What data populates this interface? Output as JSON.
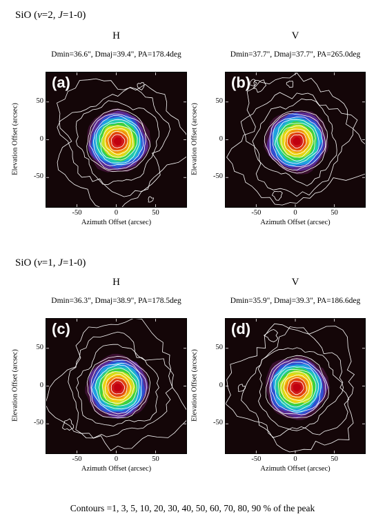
{
  "figure": {
    "contour_note": "Contours =1, 3, 5, 10, 20, 30, 40, 50, 60, 70, 80, 90 % of the peak",
    "colors": {
      "background": "#140608",
      "contour_line": "#ffffff",
      "ramp": [
        "#3a1030",
        "#5a2a90",
        "#2f4fd0",
        "#1f9fe0",
        "#21c8b0",
        "#3cd040",
        "#c8e020",
        "#f0d010",
        "#f09010",
        "#e04010",
        "#d01818",
        "#c00010"
      ]
    }
  },
  "groups": [
    {
      "title_pre": "SiO (",
      "title_v": "v",
      "title_mid1": "=2, ",
      "title_j": "J",
      "title_post": "=1-0)"
    },
    {
      "title_pre": "SiO (",
      "title_v": "v",
      "title_mid1": "=1, ",
      "title_j": "J",
      "title_post": "=1-0)"
    }
  ],
  "chart_data": [
    {
      "type": "heatmap",
      "label": "(a)",
      "polarization": "H",
      "beam": "Dmin=36.6\", Dmaj=39.4\", PA=178.4deg",
      "xlabel": "Azimuth Offset (arcsec)",
      "ylabel": "Elevation Offset (arcsec)",
      "xlim": [
        -90,
        90
      ],
      "ylim": [
        -90,
        90
      ],
      "xticks": [
        -50,
        0,
        50
      ],
      "yticks": [
        50,
        0,
        -50
      ],
      "contour_levels_percent": [
        1,
        3,
        5,
        10,
        20,
        30,
        40,
        50,
        60,
        70,
        80,
        90
      ],
      "peak_position": [
        2,
        -2
      ],
      "dmin": 36.6,
      "dmaj": 39.4,
      "pa_deg": 178.4
    },
    {
      "type": "heatmap",
      "label": "(b)",
      "polarization": "V",
      "beam": "Dmin=37.7\", Dmaj=37.7\", PA=265.0deg",
      "xlabel": "Azimuth Offset (arcsec)",
      "ylabel": "Elevation Offset (arcsec)",
      "xlim": [
        -90,
        90
      ],
      "ylim": [
        -90,
        90
      ],
      "xticks": [
        -50,
        0,
        50
      ],
      "yticks": [
        50,
        0,
        -50
      ],
      "contour_levels_percent": [
        1,
        3,
        5,
        10,
        20,
        30,
        40,
        50,
        60,
        70,
        80,
        90
      ],
      "peak_position": [
        2,
        -2
      ],
      "dmin": 37.7,
      "dmaj": 37.7,
      "pa_deg": 265.0
    },
    {
      "type": "heatmap",
      "label": "(c)",
      "polarization": "H",
      "beam": "Dmin=36.3\", Dmaj=38.9\", PA=178.5deg",
      "xlabel": "Azimuth Offset (arcsec)",
      "ylabel": "Elevation Offset (arcsec)",
      "xlim": [
        -90,
        90
      ],
      "ylim": [
        -90,
        90
      ],
      "xticks": [
        -50,
        0,
        50
      ],
      "yticks": [
        50,
        0,
        -50
      ],
      "contour_levels_percent": [
        1,
        3,
        5,
        10,
        20,
        30,
        40,
        50,
        60,
        70,
        80,
        90
      ],
      "peak_position": [
        2,
        -2
      ],
      "dmin": 36.3,
      "dmaj": 38.9,
      "pa_deg": 178.5
    },
    {
      "type": "heatmap",
      "label": "(d)",
      "polarization": "V",
      "beam": "Dmin=35.9\", Dmaj=39.3\", PA=186.6deg",
      "xlabel": "Azimuth Offset (arcsec)",
      "ylabel": "Elevation Offset (arcsec)",
      "xlim": [
        -90,
        90
      ],
      "ylim": [
        -90,
        90
      ],
      "xticks": [
        -50,
        0,
        50
      ],
      "yticks": [
        50,
        0,
        -50
      ],
      "contour_levels_percent": [
        1,
        3,
        5,
        10,
        20,
        30,
        40,
        50,
        60,
        70,
        80,
        90
      ],
      "peak_position": [
        2,
        -2
      ],
      "dmin": 35.9,
      "dmaj": 39.3,
      "pa_deg": 186.6
    }
  ]
}
